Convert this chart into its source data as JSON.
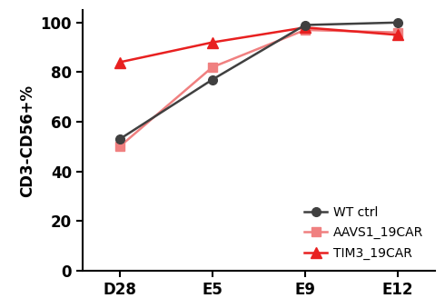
{
  "x_labels": [
    "D28",
    "E5",
    "E9",
    "E12"
  ],
  "x_positions": [
    0,
    1,
    2,
    3
  ],
  "series": [
    {
      "label": "WT ctrl",
      "values": [
        53,
        77,
        99,
        100
      ],
      "color": "#404040",
      "marker": "o",
      "markersize": 7,
      "linewidth": 1.8,
      "zorder": 3
    },
    {
      "label": "AAVS1_19CAR",
      "values": [
        50,
        82,
        97,
        96
      ],
      "color": "#f08080",
      "marker": "s",
      "markersize": 7,
      "linewidth": 1.8,
      "zorder": 2
    },
    {
      "label": "TIM3_19CAR",
      "values": [
        84,
        92,
        98,
        95
      ],
      "color": "#e82020",
      "marker": "^",
      "markersize": 8,
      "linewidth": 1.8,
      "zorder": 2
    }
  ],
  "ylabel": "CD3-CD56+%",
  "ylim": [
    0,
    105
  ],
  "yticks": [
    0,
    20,
    40,
    60,
    80,
    100
  ],
  "background_color": "#ffffff",
  "tick_fontsize": 12,
  "label_fontsize": 12,
  "legend_fontsize": 10,
  "figsize": [
    4.9,
    3.39
  ],
  "dpi": 100
}
